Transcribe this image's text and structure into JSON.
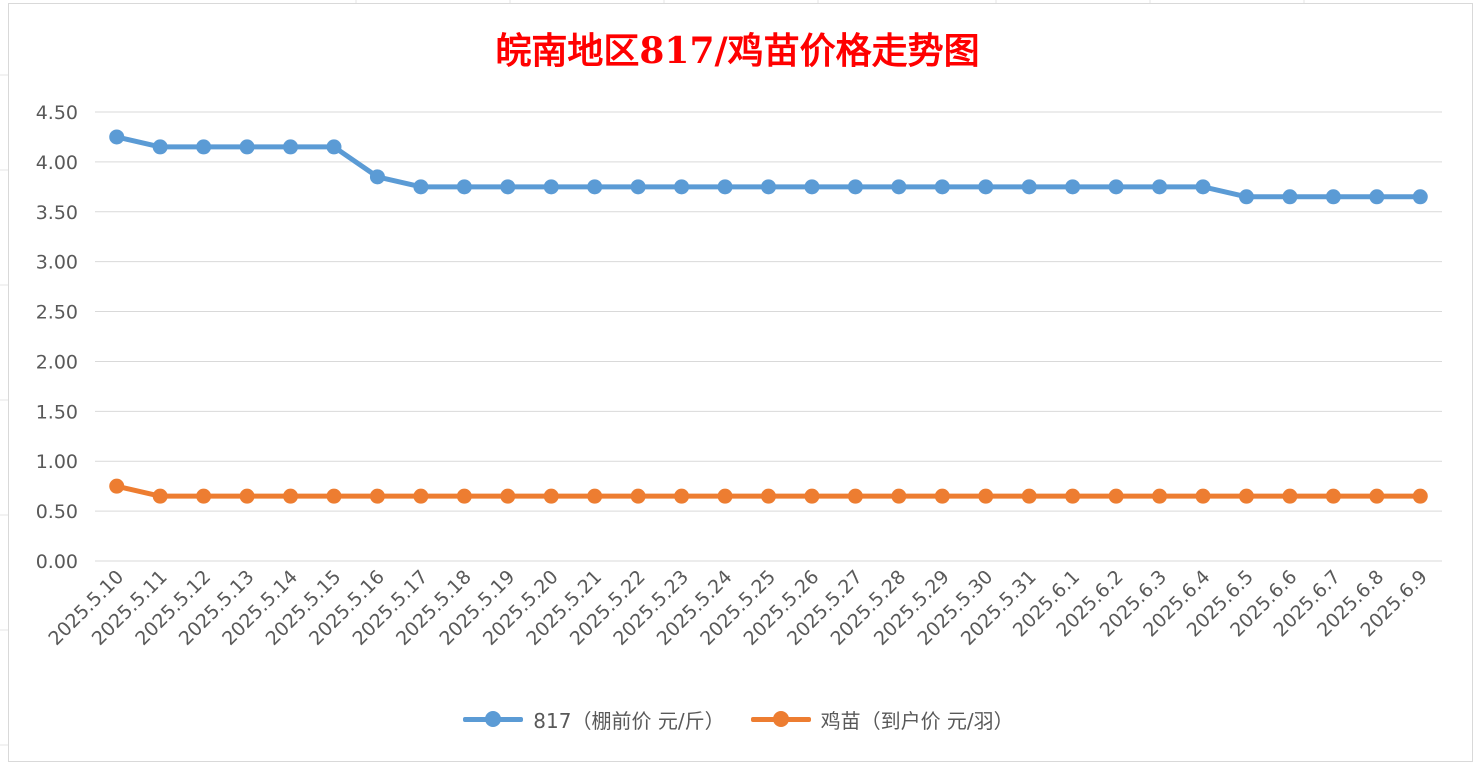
{
  "chart_data": {
    "type": "line",
    "title": "皖南地区817/鸡苗价格走势图",
    "title_color": "#ff0000",
    "categories": [
      "2025.5.10",
      "2025.5.11",
      "2025.5.12",
      "2025.5.13",
      "2025.5.14",
      "2025.5.15",
      "2025.5.16",
      "2025.5.17",
      "2025.5.18",
      "2025.5.19",
      "2025.5.20",
      "2025.5.21",
      "2025.5.22",
      "2025.5.23",
      "2025.5.24",
      "2025.5.25",
      "2025.5.26",
      "2025.5.27",
      "2025.5.28",
      "2025.5.29",
      "2025.5.30",
      "2025.5.31",
      "2025.6.1",
      "2025.6.2",
      "2025.6.3",
      "2025.6.4",
      "2025.6.5",
      "2025.6.6",
      "2025.6.7",
      "2025.6.8",
      "2025.6.9"
    ],
    "series": [
      {
        "name": "817（棚前价 元/斤）",
        "color": "#5b9bd5",
        "values": [
          4.25,
          4.15,
          4.15,
          4.15,
          4.15,
          4.15,
          3.85,
          3.75,
          3.75,
          3.75,
          3.75,
          3.75,
          3.75,
          3.75,
          3.75,
          3.75,
          3.75,
          3.75,
          3.75,
          3.75,
          3.75,
          3.75,
          3.75,
          3.75,
          3.75,
          3.75,
          3.65,
          3.65,
          3.65,
          3.65,
          3.65
        ]
      },
      {
        "name": "鸡苗（到户价 元/羽）",
        "color": "#ed7d31",
        "values": [
          0.75,
          0.65,
          0.65,
          0.65,
          0.65,
          0.65,
          0.65,
          0.65,
          0.65,
          0.65,
          0.65,
          0.65,
          0.65,
          0.65,
          0.65,
          0.65,
          0.65,
          0.65,
          0.65,
          0.65,
          0.65,
          0.65,
          0.65,
          0.65,
          0.65,
          0.65,
          0.65,
          0.65,
          0.65,
          0.65,
          0.65
        ]
      }
    ],
    "ylim": [
      0,
      4.5
    ],
    "yticks": [
      "0.00",
      "0.50",
      "1.00",
      "1.50",
      "2.00",
      "2.50",
      "3.00",
      "3.50",
      "4.00",
      "4.50"
    ],
    "xlabel": "",
    "ylabel": "",
    "grid": true,
    "legend_position": "bottom"
  }
}
